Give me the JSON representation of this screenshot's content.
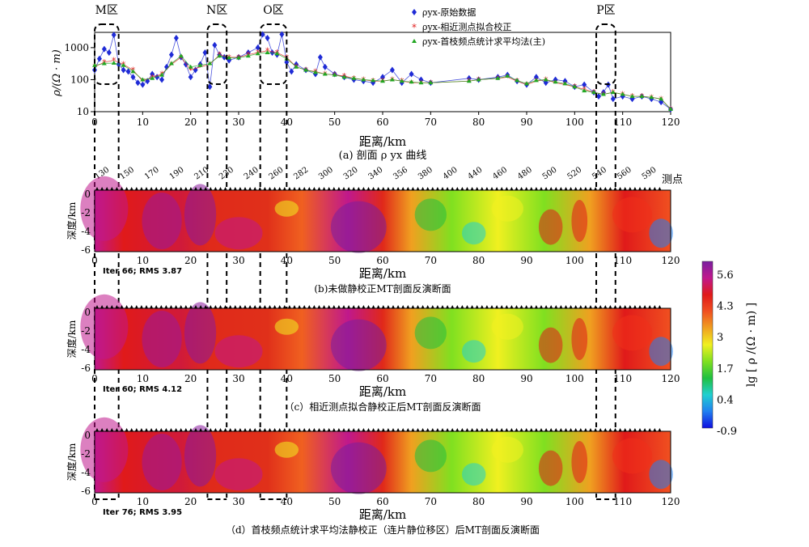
{
  "zones": [
    {
      "label": "M区",
      "x0": 0,
      "x1": 5
    },
    {
      "label": "N区",
      "x0": 23.5,
      "x1": 27.5
    },
    {
      "label": "O区",
      "x0": 34.5,
      "x1": 40
    },
    {
      "label": "P区",
      "x0": 104.5,
      "x1": 108.5
    }
  ],
  "panel_a": {
    "ytick_labels": [
      "1000",
      "100",
      "10"
    ],
    "xticks": [
      0,
      10,
      20,
      30,
      40,
      50,
      60,
      70,
      80,
      90,
      100,
      110,
      120
    ],
    "ylabel": "ρ/(Ω · m)",
    "xlabel": "距离/km",
    "caption": "(a) 剖面 ρ yx 曲线",
    "legend": [
      {
        "label": "ρyx-原始数据",
        "color": "#1f2bd6",
        "marker": "diamond"
      },
      {
        "label": "ρyx-相近测点拟合校正",
        "color": "#e02020",
        "marker": "star"
      },
      {
        "label": "ρyx-首枝频点统计求平均法(主)",
        "color": "#22a622",
        "marker": "triangle"
      }
    ]
  },
  "stations": {
    "labels": [
      "130",
      "150",
      "170",
      "190",
      "210",
      "230",
      "240",
      "260",
      "282",
      "300",
      "320",
      "340",
      "356",
      "380",
      "400",
      "440",
      "460",
      "480",
      "500",
      "520",
      "540",
      "560",
      "590"
    ],
    "title": "测点"
  },
  "sections": [
    {
      "id": "b",
      "iter": "Iter 66;  RMS 3.87",
      "caption": "(b)未做静校正MT剖面反演断面"
    },
    {
      "id": "c",
      "iter": "Iter 60;  RMS 4.12",
      "caption": "（c）相近测点拟合静校正后MT剖面反演断面"
    },
    {
      "id": "d",
      "iter": "Iter 76;  RMS 3.95",
      "caption": "（d）首枝频点统计求平均法静校正（连片静位移区）后MT剖面反演断面"
    }
  ],
  "section_axes": {
    "ylabel": "深度/km",
    "ytick_labels": [
      "0",
      "-2",
      "-4",
      "-6"
    ],
    "xlabel": "距离/km"
  },
  "colorbar": {
    "ticks": [
      "5.6",
      "4.3",
      "3",
      "1.7",
      "0.4",
      "-0.9"
    ],
    "label": "lg [ ρ /(Ω · m) ]",
    "colors": [
      "#7a1fa0",
      "#c0188c",
      "#e01a1a",
      "#f05020",
      "#f0a020",
      "#f0f020",
      "#80e020",
      "#20c040",
      "#20d0d0",
      "#2080f0",
      "#1010e0"
    ]
  },
  "chart_data": {
    "type": "scatter",
    "title": "",
    "xlabel": "距离/km",
    "ylabel": "ρ/(Ω · m)",
    "xlim": [
      0,
      120
    ],
    "ylim": [
      10,
      3000
    ],
    "yscale": "log",
    "series": [
      {
        "name": "ρyx-原始数据",
        "x": [
          0,
          1,
          2,
          3,
          4,
          5,
          6,
          7,
          8,
          9,
          10,
          11,
          12,
          13,
          14,
          15,
          16,
          17,
          18,
          19,
          20,
          21,
          22,
          23,
          24,
          25,
          26,
          27,
          28,
          30,
          32,
          34,
          35,
          36,
          37,
          38,
          39,
          40,
          41,
          42,
          44,
          46,
          47,
          48,
          50,
          52,
          54,
          56,
          58,
          60,
          62,
          64,
          66,
          68,
          70,
          78,
          80,
          84,
          86,
          88,
          90,
          92,
          94,
          96,
          98,
          100,
          102,
          104,
          105,
          106,
          107,
          108,
          110,
          112,
          114,
          116,
          118,
          120
        ],
        "y": [
          200,
          450,
          900,
          700,
          2500,
          300,
          200,
          180,
          120,
          80,
          70,
          90,
          150,
          120,
          100,
          250,
          600,
          2000,
          500,
          300,
          120,
          200,
          300,
          700,
          60,
          1200,
          600,
          500,
          400,
          500,
          700,
          1000,
          2600,
          2000,
          700,
          600,
          2600,
          350,
          180,
          300,
          200,
          150,
          500,
          250,
          150,
          120,
          100,
          90,
          80,
          120,
          200,
          80,
          150,
          100,
          80,
          110,
          100,
          120,
          140,
          90,
          70,
          120,
          80,
          100,
          90,
          60,
          70,
          40,
          30,
          40,
          70,
          25,
          30,
          25,
          30,
          25,
          20,
          12
        ]
      },
      {
        "name": "ρyx-相近测点拟合校正",
        "x": [
          0,
          2,
          4,
          6,
          8,
          10,
          12,
          14,
          16,
          18,
          20,
          22,
          24,
          26,
          28,
          30,
          32,
          34,
          36,
          38,
          40,
          42,
          44,
          46,
          48,
          50,
          52,
          54,
          56,
          58,
          60,
          62,
          64,
          66,
          68,
          70,
          78,
          80,
          84,
          86,
          88,
          90,
          92,
          94,
          96,
          98,
          100,
          102,
          104,
          106,
          108,
          110,
          112,
          114,
          116,
          118,
          120
        ],
        "y": [
          250,
          350,
          400,
          300,
          200,
          90,
          120,
          150,
          300,
          500,
          200,
          250,
          300,
          600,
          500,
          500,
          600,
          700,
          800,
          700,
          500,
          250,
          200,
          180,
          150,
          140,
          130,
          110,
          100,
          90,
          90,
          100,
          90,
          80,
          80,
          80,
          90,
          100,
          110,
          120,
          90,
          70,
          90,
          100,
          80,
          70,
          60,
          50,
          40,
          35,
          40,
          35,
          30,
          30,
          28,
          25,
          12
        ]
      },
      {
        "name": "ρyx-首枝频点统计求平均法(主)",
        "x": [
          0,
          2,
          4,
          6,
          8,
          10,
          12,
          14,
          16,
          18,
          20,
          22,
          24,
          26,
          28,
          30,
          32,
          34,
          36,
          38,
          40,
          42,
          44,
          46,
          48,
          50,
          52,
          54,
          56,
          58,
          60,
          62,
          64,
          66,
          68,
          70,
          78,
          80,
          84,
          86,
          88,
          90,
          92,
          94,
          96,
          98,
          100,
          102,
          104,
          106,
          108,
          110,
          112,
          114,
          116,
          118,
          120
        ],
        "y": [
          280,
          320,
          330,
          280,
          180,
          100,
          110,
          140,
          320,
          550,
          250,
          280,
          320,
          550,
          480,
          480,
          550,
          650,
          700,
          650,
          450,
          250,
          200,
          170,
          150,
          140,
          120,
          110,
          100,
          95,
          90,
          100,
          90,
          85,
          80,
          80,
          90,
          100,
          110,
          130,
          95,
          75,
          95,
          100,
          85,
          75,
          60,
          45,
          40,
          35,
          40,
          35,
          30,
          30,
          28,
          25,
          12
        ]
      }
    ]
  }
}
